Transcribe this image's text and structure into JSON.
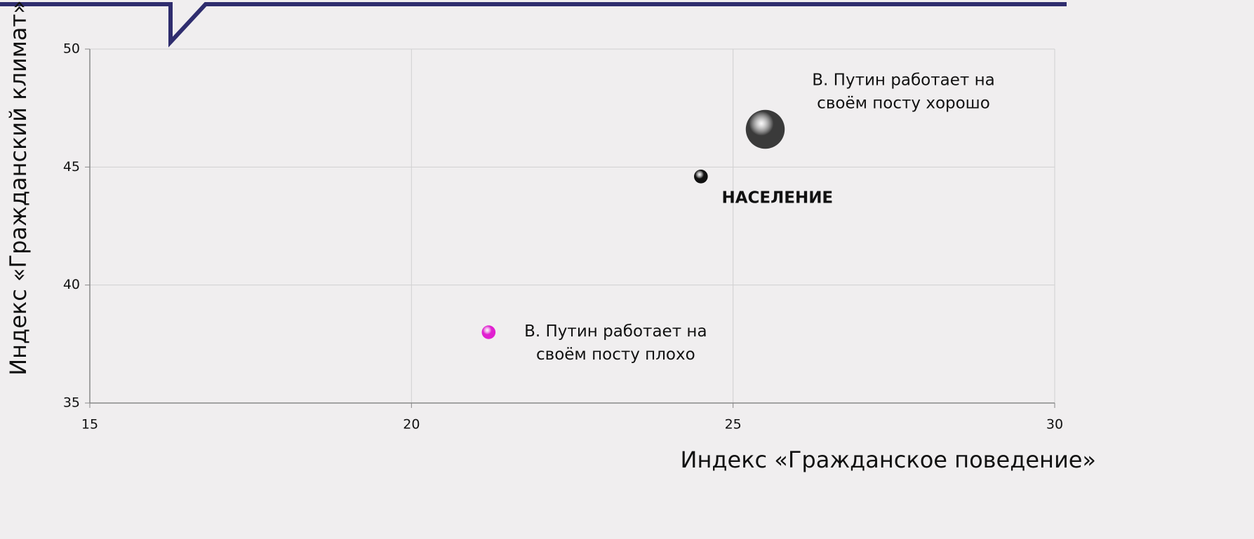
{
  "chart_data": {
    "type": "bubble",
    "x_label": "Индекс «Гражданское поведение»",
    "y_label": "Индекс «Гражданский климат»",
    "xlim": [
      15,
      30
    ],
    "xticks": [
      15,
      20,
      25,
      30
    ],
    "ylim": [
      35,
      50
    ],
    "yticks": [
      35,
      40,
      45,
      50
    ],
    "grid": true,
    "series": [
      {
        "name": [
          "В. Путин работает на",
          "своём посту плохо"
        ],
        "color": "#e020d0",
        "x": [
          21.2
        ],
        "values": [
          38.0
        ],
        "size": [
          10
        ]
      },
      {
        "name": [
          "НАСЕЛЕНИЕ"
        ],
        "color": "#111111",
        "x": [
          24.5
        ],
        "values": [
          44.6
        ],
        "size": [
          10
        ]
      },
      {
        "name": [
          "В. Путин работает на",
          "своём посту хорошо"
        ],
        "color": "#3a3a3a",
        "x": [
          25.5
        ],
        "values": [
          46.6
        ],
        "size": [
          80
        ]
      }
    ]
  }
}
